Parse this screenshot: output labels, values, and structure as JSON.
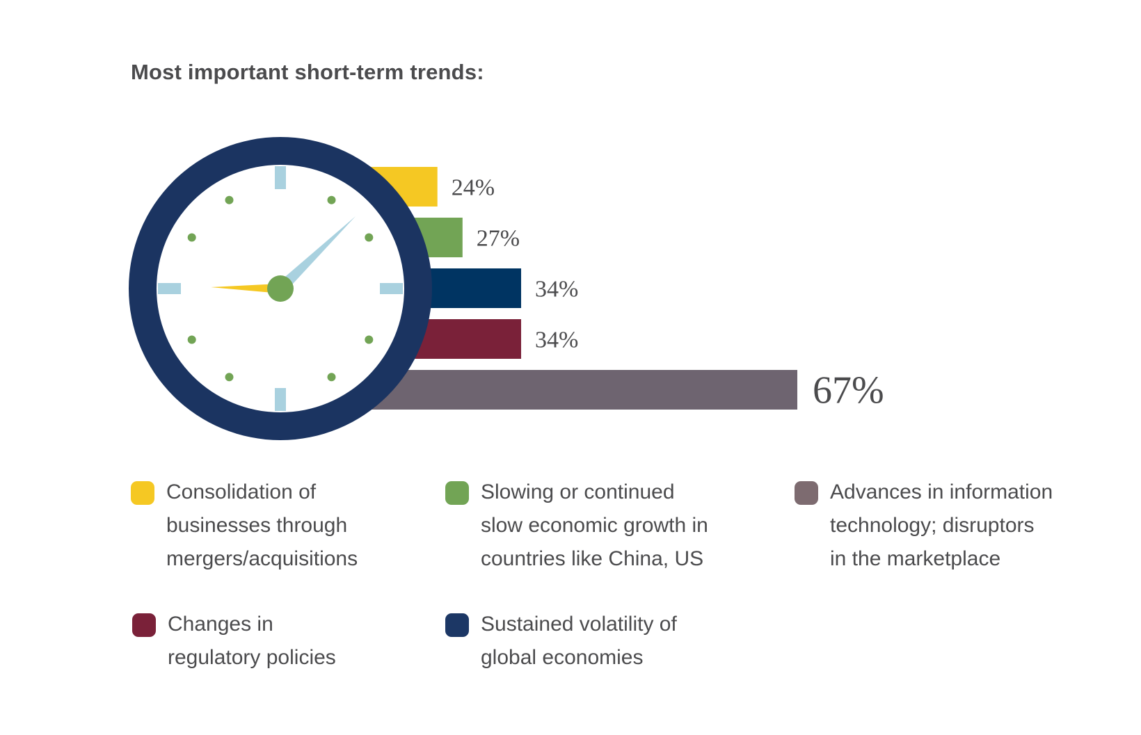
{
  "chart_data": {
    "type": "bar",
    "orientation": "horizontal",
    "title": "Most important short-term trends:",
    "categories": [
      "Consolidation of businesses through mergers/acquisitions",
      "Slowing or continued slow economic growth in countries like China, US",
      "Sustained volatility of global economies",
      "Changes in regulatory policies",
      "Advances in information technology; disruptors in the marketplace"
    ],
    "values": [
      24,
      27,
      34,
      34,
      67
    ],
    "value_labels": [
      "24%",
      "27%",
      "34%",
      "34%",
      "67%"
    ],
    "colors": [
      "#f5c823",
      "#72a455",
      "#003462",
      "#7a2139",
      "#6e6470"
    ],
    "grid": false,
    "legend_position": "bottom"
  },
  "legend": [
    {
      "text": "Consolidation of\nbusinesses through\nmergers/acquisitions",
      "color": "#f5c823"
    },
    {
      "text": "Slowing or continued\nslow economic growth in\ncountries like China, US",
      "color": "#72a455"
    },
    {
      "text": "Advances in information\ntechnology; disruptors\nin the marketplace",
      "color": "#7d6b70"
    },
    {
      "text": "Changes in\nregulatory policies",
      "color": "#7a2139"
    },
    {
      "text": "Sustained volatility of\nglobal economies",
      "color": "#1c3765"
    }
  ],
  "clock": {
    "rim_color": "#1b3461",
    "hour_hand_color": "#f5c823",
    "minute_hand_color": "#a9d1df",
    "hub_color": "#72a455",
    "tick_color": "#a9d1df",
    "dot_color": "#72a455"
  }
}
